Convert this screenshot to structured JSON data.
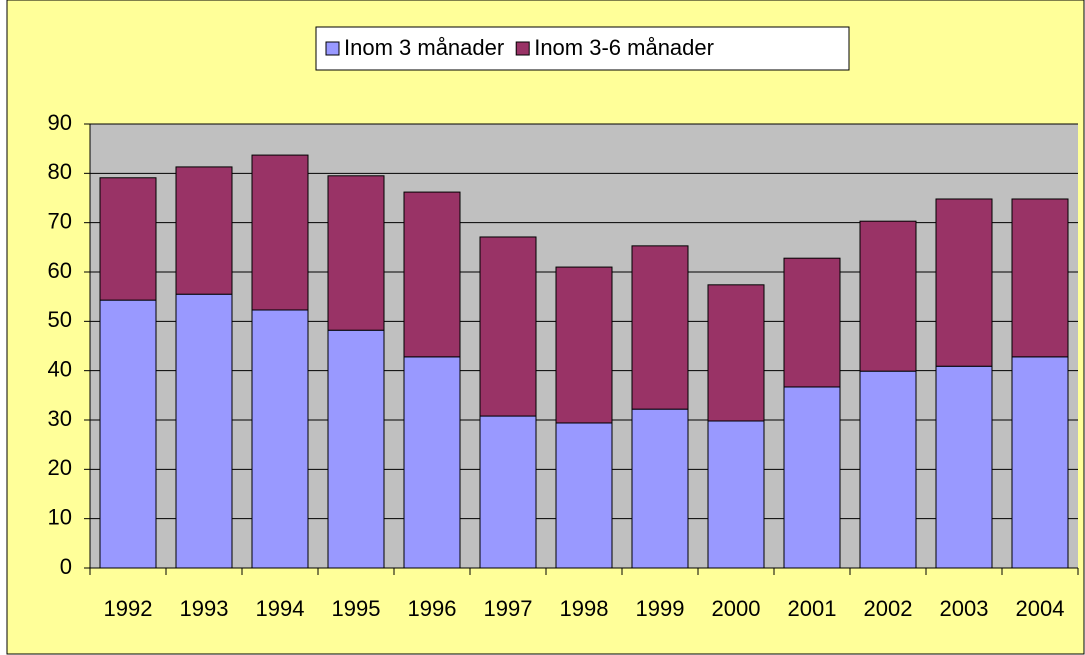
{
  "chart_data": {
    "type": "stacked_bar",
    "categories": [
      "1992",
      "1993",
      "1994",
      "1995",
      "1996",
      "1997",
      "1998",
      "1999",
      "2000",
      "2001",
      "2002",
      "2003",
      "2004"
    ],
    "series": [
      {
        "name": "Inom 3 månader",
        "color": "#9999ff",
        "values": [
          54.3,
          55.5,
          52.3,
          48.2,
          42.8,
          30.8,
          29.4,
          32.2,
          29.8,
          36.7,
          39.9,
          40.9,
          42.8
        ]
      },
      {
        "name": "Inom 3-6 månader",
        "color": "#993366",
        "values": [
          24.8,
          25.8,
          31.4,
          31.3,
          33.4,
          36.3,
          31.6,
          33.1,
          27.6,
          26.1,
          30.4,
          33.9,
          32.0
        ]
      }
    ],
    "ylim": [
      0,
      90
    ],
    "yticks": [
      0,
      10,
      20,
      30,
      40,
      50,
      60,
      70,
      80,
      90
    ],
    "grid": true,
    "legend": "top"
  }
}
